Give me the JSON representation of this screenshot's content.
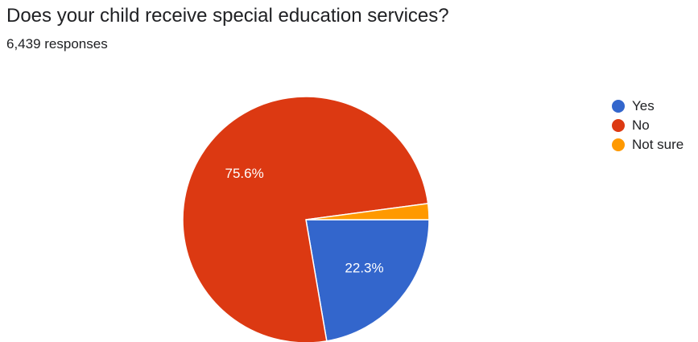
{
  "header": {
    "title": "Does your child receive special education services?",
    "responses": "6,439 responses"
  },
  "chart_data": {
    "type": "pie",
    "title": "Does your child receive special education services?",
    "categories": [
      "Yes",
      "No",
      "Not sure"
    ],
    "values": [
      22.3,
      75.6,
      2.1
    ],
    "data_labels": [
      "22.3%",
      "75.6%",
      ""
    ],
    "colors": [
      "#3366cc",
      "#dc3912",
      "#ff9900"
    ],
    "legend_position": "right"
  }
}
